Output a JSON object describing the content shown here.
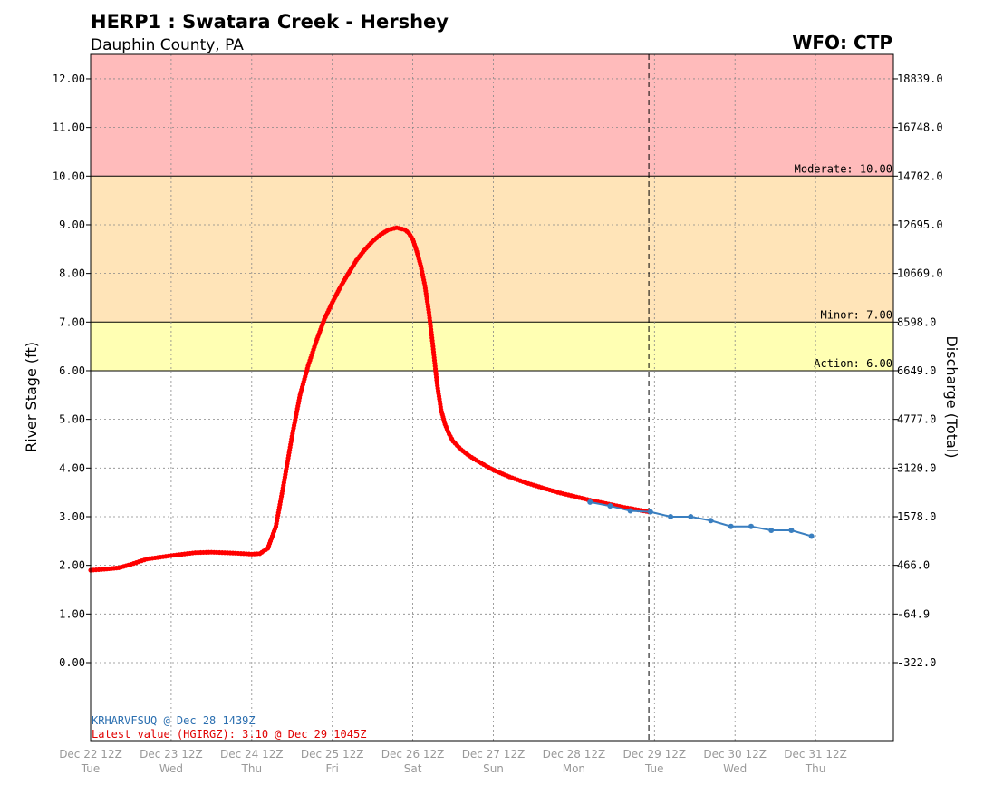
{
  "chart_data": {
    "type": "line",
    "title": "HERP1 : Swatara Creek - Hershey",
    "subtitle": "Dauphin County, PA",
    "office": "WFO: CTP",
    "ylabel": "River Stage (ft)",
    "y2label": "Discharge (Total)",
    "ylim": [
      -1.5,
      12.5
    ],
    "xlim": [
      0,
      10
    ],
    "grid": true,
    "y_ticks": [
      "0.00",
      "1.00",
      "2.00",
      "3.00",
      "4.00",
      "5.00",
      "6.00",
      "7.00",
      "8.00",
      "9.00",
      "10.00",
      "11.00",
      "12.00"
    ],
    "y_tick_values": [
      0,
      1,
      2,
      3,
      4,
      5,
      6,
      7,
      8,
      9,
      10,
      11,
      12
    ],
    "y2_ticks": [
      "-322.0",
      "-64.9",
      "466.0",
      "1578.0",
      "3120.0",
      "4777.0",
      "6649.0",
      "8598.0",
      "10669.0",
      "12695.0",
      "14702.0",
      "16748.0",
      "18839.0"
    ],
    "x_ticks": [
      {
        "value": 0,
        "line1": "Dec 22 12Z",
        "line2": "Tue"
      },
      {
        "value": 1,
        "line1": "Dec 23 12Z",
        "line2": "Wed"
      },
      {
        "value": 2,
        "line1": "Dec 24 12Z",
        "line2": "Thu"
      },
      {
        "value": 3,
        "line1": "Dec 25 12Z",
        "line2": "Fri"
      },
      {
        "value": 4,
        "line1": "Dec 26 12Z",
        "line2": "Sat"
      },
      {
        "value": 5,
        "line1": "Dec 27 12Z",
        "line2": "Sun"
      },
      {
        "value": 6,
        "line1": "Dec 28 12Z",
        "line2": "Mon"
      },
      {
        "value": 7,
        "line1": "Dec 29 12Z",
        "line2": "Tue"
      },
      {
        "value": 8,
        "line1": "Dec 30 12Z",
        "line2": "Wed"
      },
      {
        "value": 9,
        "line1": "Dec 31 12Z",
        "line2": "Thu"
      }
    ],
    "flood_categories": [
      {
        "name": "Action",
        "label": "Action: 6.00",
        "from": 6,
        "to": 7,
        "color": "#ffffb3"
      },
      {
        "name": "Minor",
        "label": "Minor: 7.00",
        "from": 7,
        "to": 10,
        "color": "#ffe4b8"
      },
      {
        "name": "Moderate",
        "label": "Moderate: 10.00",
        "from": 10,
        "to": 12.5,
        "color": "#ffbbbb"
      }
    ],
    "current_time_x": 6.93,
    "series": [
      {
        "color": "#ff0000",
        "x": [
          0,
          0.17,
          0.35,
          0.5,
          0.7,
          1.0,
          1.3,
          1.5,
          1.8,
          2.0,
          2.1,
          2.2,
          2.3,
          2.4,
          2.5,
          2.6,
          2.7,
          2.8,
          2.9,
          3.0,
          3.1,
          3.2,
          3.3,
          3.4,
          3.5,
          3.6,
          3.7,
          3.8,
          3.9,
          3.95,
          4.0,
          4.05,
          4.1,
          4.15,
          4.2,
          4.25,
          4.3,
          4.35,
          4.4,
          4.45,
          4.5,
          4.6,
          4.7,
          4.85,
          5.0,
          5.2,
          5.4,
          5.6,
          5.8,
          6.0,
          6.2,
          6.4,
          6.6,
          6.8,
          6.93
        ],
        "values": [
          1.9,
          1.92,
          1.95,
          2.02,
          2.13,
          2.2,
          2.26,
          2.27,
          2.25,
          2.23,
          2.24,
          2.35,
          2.8,
          3.7,
          4.65,
          5.5,
          6.1,
          6.6,
          7.05,
          7.4,
          7.72,
          8.0,
          8.27,
          8.48,
          8.66,
          8.8,
          8.9,
          8.94,
          8.9,
          8.83,
          8.7,
          8.45,
          8.15,
          7.75,
          7.2,
          6.5,
          5.75,
          5.2,
          4.9,
          4.7,
          4.55,
          4.38,
          4.25,
          4.1,
          3.96,
          3.82,
          3.7,
          3.6,
          3.5,
          3.42,
          3.34,
          3.27,
          3.2,
          3.14,
          3.1
        ]
      },
      {
        "color": "#3a7fc0",
        "x": [
          6.2,
          6.45,
          6.7,
          6.95,
          7.2,
          7.45,
          7.7,
          7.95,
          8.2,
          8.45,
          8.7,
          8.95
        ],
        "values": [
          3.3,
          3.22,
          3.12,
          3.1,
          3.0,
          3.0,
          2.92,
          2.8,
          2.8,
          2.72,
          2.72,
          2.6
        ]
      }
    ],
    "notes": {
      "forecast": "KRHARVFSUQ @ Dec 28 1439Z",
      "latest": "Latest value (HGIRGZ): 3.10 @ Dec 29 1045Z"
    }
  }
}
